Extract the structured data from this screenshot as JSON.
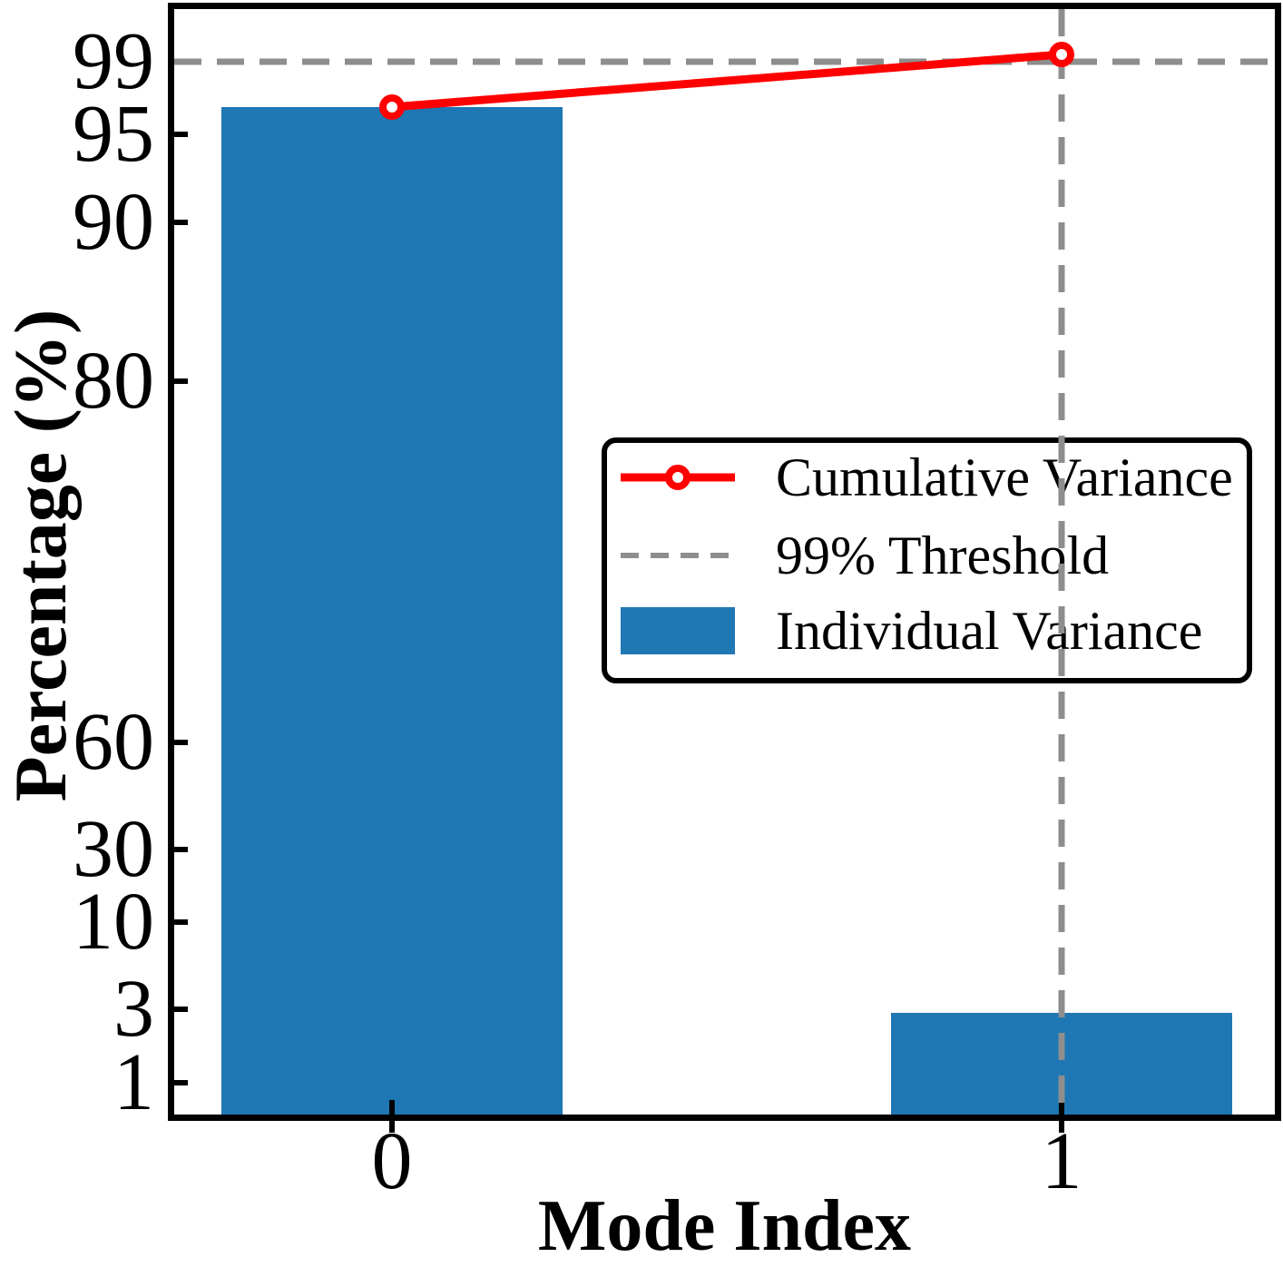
{
  "chart_data": {
    "type": "bar",
    "title": "",
    "xlabel": "Mode Index",
    "ylabel": "Percentage (%)",
    "categories": [
      "0",
      "1"
    ],
    "series": [
      {
        "name": "Individual Variance",
        "kind": "bar",
        "values": [
          96.5,
          2.9
        ]
      },
      {
        "name": "Cumulative Variance",
        "kind": "line",
        "values": [
          96.5,
          99.4
        ],
        "marker": "open-circle"
      },
      {
        "name": "99% Threshold",
        "kind": "threshold",
        "value": 99
      }
    ],
    "y_ticks": [
      99,
      95,
      90,
      80,
      60,
      30,
      10,
      3,
      1
    ],
    "x_tick_labels": [
      "0",
      "1"
    ],
    "yscale": "nonlinear percentage (probit-like)",
    "grid": "off",
    "annotations": {
      "vline_at_mode": 1
    },
    "legend": {
      "position": "center-right",
      "entries": [
        "Cumulative Variance",
        "99% Threshold",
        "Individual Variance"
      ]
    },
    "colors": {
      "bar": "#1f77b4",
      "cumulative_line": "#ff0000",
      "threshold_dash": "#8e8e8e",
      "axis": "#000000",
      "background": "#ffffff"
    }
  }
}
